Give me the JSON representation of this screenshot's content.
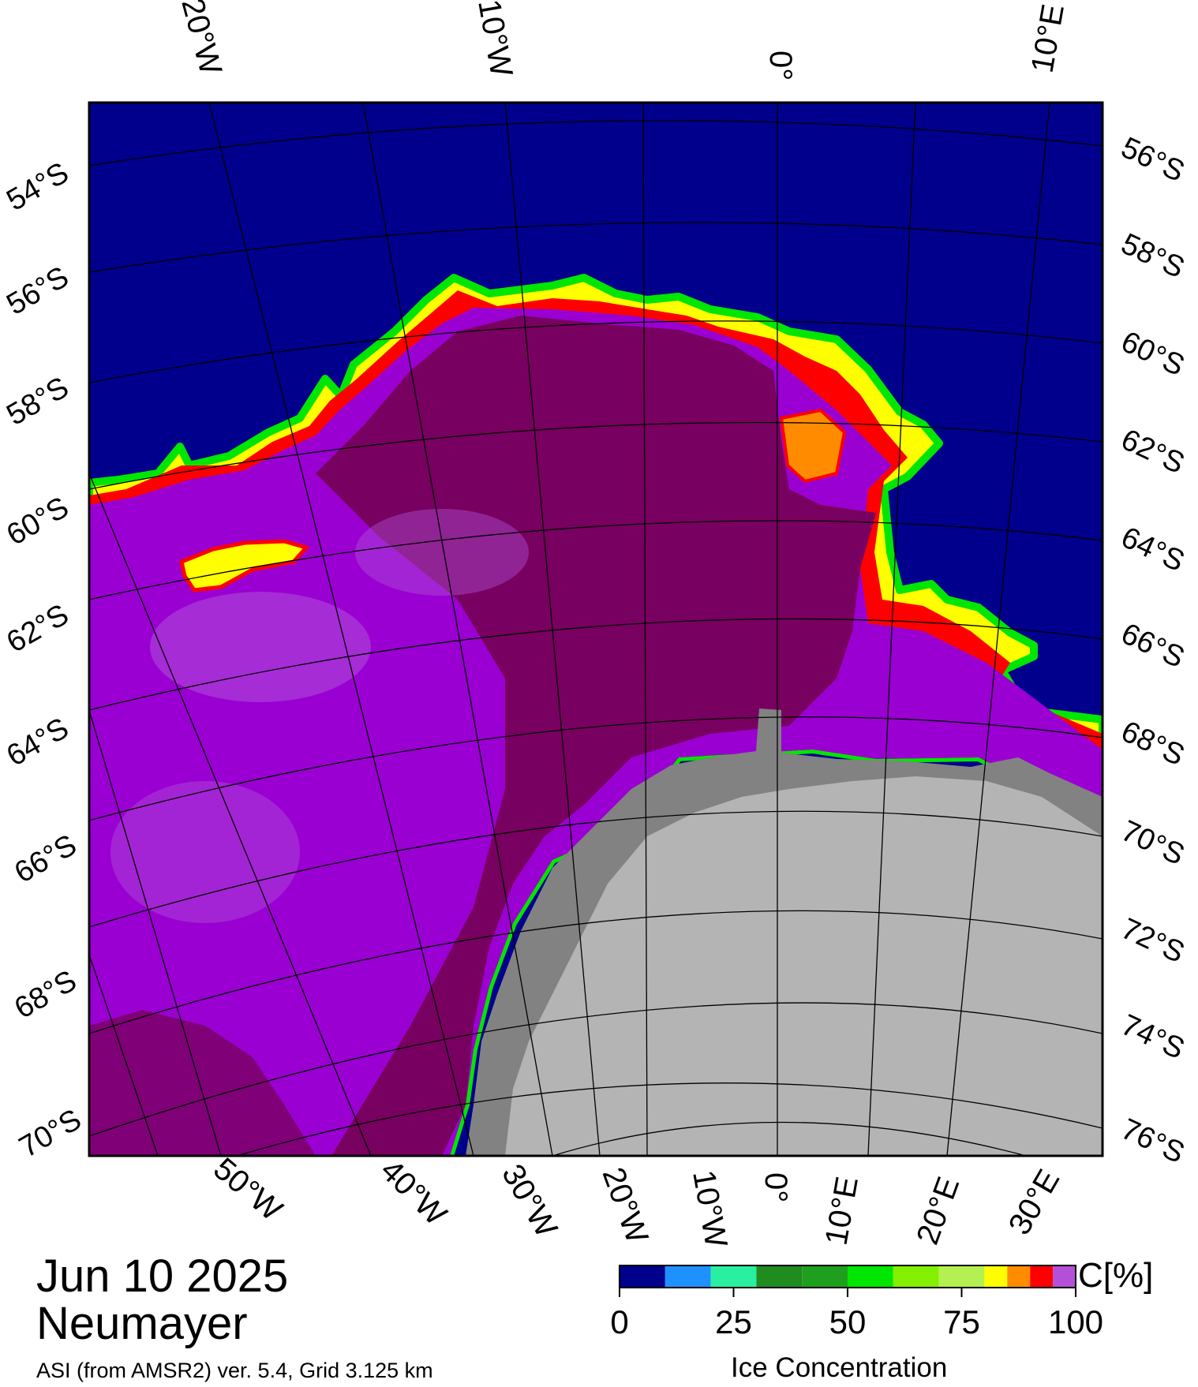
{
  "map": {
    "date": "Jun 10 2025",
    "station": "Neumayer",
    "source": "ASI (from AMSR2) ver. 5.4,  Grid 3.125 km",
    "lat_labels_left": [
      "54°S",
      "56°S",
      "58°S",
      "60°S",
      "62°S",
      "64°S",
      "66°S",
      "68°S",
      "70°S"
    ],
    "lat_labels_right": [
      "56°S",
      "58°S",
      "60°S",
      "62°S",
      "64°S",
      "66°S",
      "68°S",
      "70°S",
      "72°S",
      "74°S",
      "76°S"
    ],
    "lon_labels_top": [
      "20°W",
      "10°W",
      "0°",
      "10°E"
    ],
    "lon_labels_bottom": [
      "50°W",
      "40°W",
      "30°W",
      "20°W",
      "10°W",
      "0°",
      "10°E",
      "20°E",
      "30°E"
    ],
    "colors": {
      "open_water": "#00008c",
      "high_ice": "#780060",
      "ice_purple": "#9a00d2",
      "ice_lavender": "#b050d8",
      "land_ice": "#b4b4b4",
      "ice_shelf": "#828282"
    }
  },
  "colorbar": {
    "title": "Ice Concentration",
    "unit": "C[%]",
    "ticks": [
      "0",
      "25",
      "50",
      "75",
      "100"
    ],
    "colors": [
      "#00008c",
      "#1e90ff",
      "#28f0a0",
      "#208c20",
      "#1ea01e",
      "#00e600",
      "#82f000",
      "#b4f050",
      "#ffff00",
      "#ff8c00",
      "#ff0000",
      "#b450d8",
      "#9600c8"
    ]
  }
}
